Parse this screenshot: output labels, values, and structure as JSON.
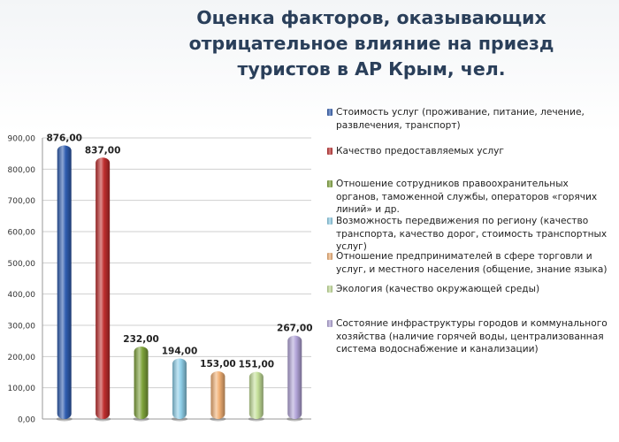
{
  "chart_data": {
    "type": "bar",
    "title": "Оценка факторов, оказывающих отрицательное влияние на приезд туристов в АР Крым, чел.",
    "title_lines": [
      "Оценка факторов, оказывающих",
      "отрицательное влияние на приезд",
      "туристов в АР Крым, чел."
    ],
    "ylim": [
      0,
      900
    ],
    "yticks": [
      "0,00",
      "100,00",
      "200,00",
      "300,00",
      "400,00",
      "500,00",
      "600,00",
      "700,00",
      "800,00",
      "900,00"
    ],
    "grid": true,
    "legend_position": "right",
    "series": [
      {
        "name": "Стоимость услуг (проживание, питание, лечение, развлечения, транспорт)",
        "value": 876,
        "label": "876,00",
        "color": "#2f5db0"
      },
      {
        "name": "Качество предоставляемых услуг",
        "value": 837,
        "label": "837,00",
        "color": "#bf2e2e"
      },
      {
        "name": "Отношение сотрудников правоохранительных органов, таможенной службы, операторов «горячих линий» и др.",
        "value": 232,
        "label": "232,00",
        "color": "#7ea33a"
      },
      {
        "name": "Возможность передвижения по региону (качество транспорта, качество дорог, стоимость транспортных услуг)",
        "value": 194,
        "label": "194,00",
        "color": "#8fd0ea"
      },
      {
        "name": "Отношение предпринимателей в сфере торговли и услуг, и местного населения (общение, знание языка)",
        "value": 153,
        "label": "153,00",
        "color": "#f2b074"
      },
      {
        "name": "Экология (качество окружающей среды)",
        "value": 151,
        "label": "151,00",
        "color": "#c5e09a"
      },
      {
        "name": "Состояние инфраструктуры городов и коммунального хозяйства (наличие горячей воды, централизованная система водоснабжение и  канализации)",
        "value": 267,
        "label": "267,00",
        "color": "#b3a5d9"
      }
    ]
  }
}
